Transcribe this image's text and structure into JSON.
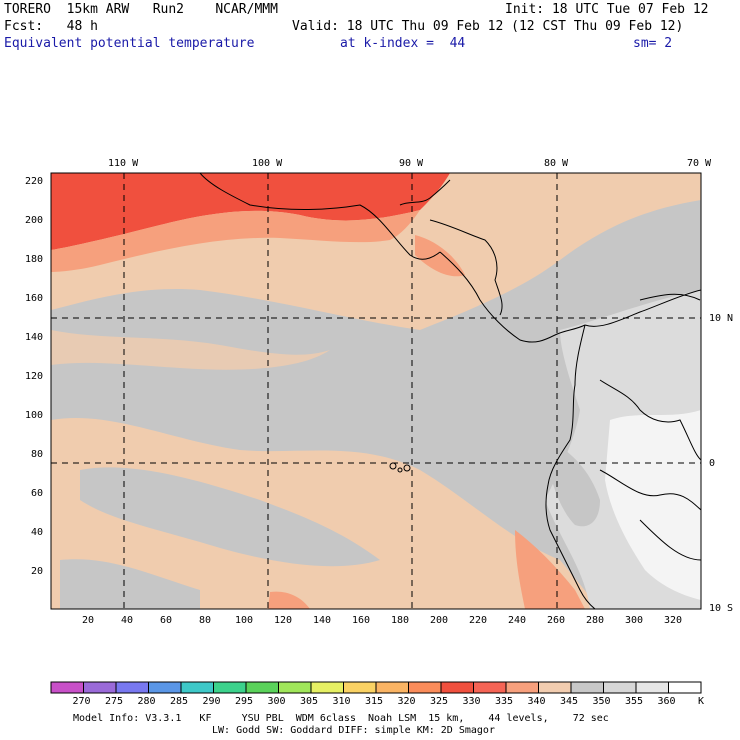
{
  "header": {
    "model": "TORERO  15km ARW   Run2    NCAR/MMM",
    "init": "Init: 18 UTC Tue 07 Feb 12",
    "fcst": "Fcst:   48 h",
    "valid": "Valid: 18 UTC Thu 09 Feb 12 (12 CST Thu 09 Feb 12)",
    "field": "Equivalent potential temperature",
    "kindex": "at k-index =  44",
    "smooth": "sm= 2"
  },
  "map": {
    "lon_labels": [
      "110 W",
      "100 W",
      "90 W",
      "80 W",
      "70 W"
    ],
    "lat_labels": [
      "10 N",
      "0",
      "10 S"
    ],
    "y_ticks": [
      "220",
      "200",
      "180",
      "160",
      "140",
      "120",
      "100",
      "80",
      "60",
      "40",
      "20"
    ],
    "x_ticks": [
      "20",
      "40",
      "60",
      "80",
      "100",
      "120",
      "140",
      "160",
      "180",
      "200",
      "220",
      "240",
      "260",
      "280",
      "300",
      "320"
    ],
    "colors": {
      "land_line": "#000000",
      "grid_line": "#000000",
      "pale_orange": "#f2cdb0",
      "salmon": "#f7a07d",
      "red": "#f0503e",
      "gray": "#c8c8c8",
      "light_gray": "#dcdcdc",
      "white": "#f8f8f8"
    }
  },
  "colorbar": {
    "levels": [
      "270",
      "275",
      "280",
      "285",
      "290",
      "295",
      "300",
      "305",
      "310",
      "315",
      "320",
      "325",
      "330",
      "335",
      "340",
      "345",
      "350",
      "355",
      "360"
    ],
    "unit": "K",
    "colors": [
      "#c850c8",
      "#9a6ad8",
      "#7878f0",
      "#5a96e6",
      "#3ec8c8",
      "#3cd28c",
      "#5ad25a",
      "#a0e65a",
      "#e6f064",
      "#fad264",
      "#fab464",
      "#fa8c5a",
      "#f0503e",
      "#f56455",
      "#f7a07d",
      "#f2cdb0",
      "#c8c8c8",
      "#d7d7d7",
      "#e6e6e6",
      "#ffffff"
    ]
  },
  "footer": {
    "line1": "Model Info: V3.3.1   KF     YSU PBL  WDM 6class  Noah LSM  15 km,    44 levels,    72 sec",
    "line2": "LW: Godd SW: Goddard DIFF: simple KM: 2D Smagor"
  }
}
